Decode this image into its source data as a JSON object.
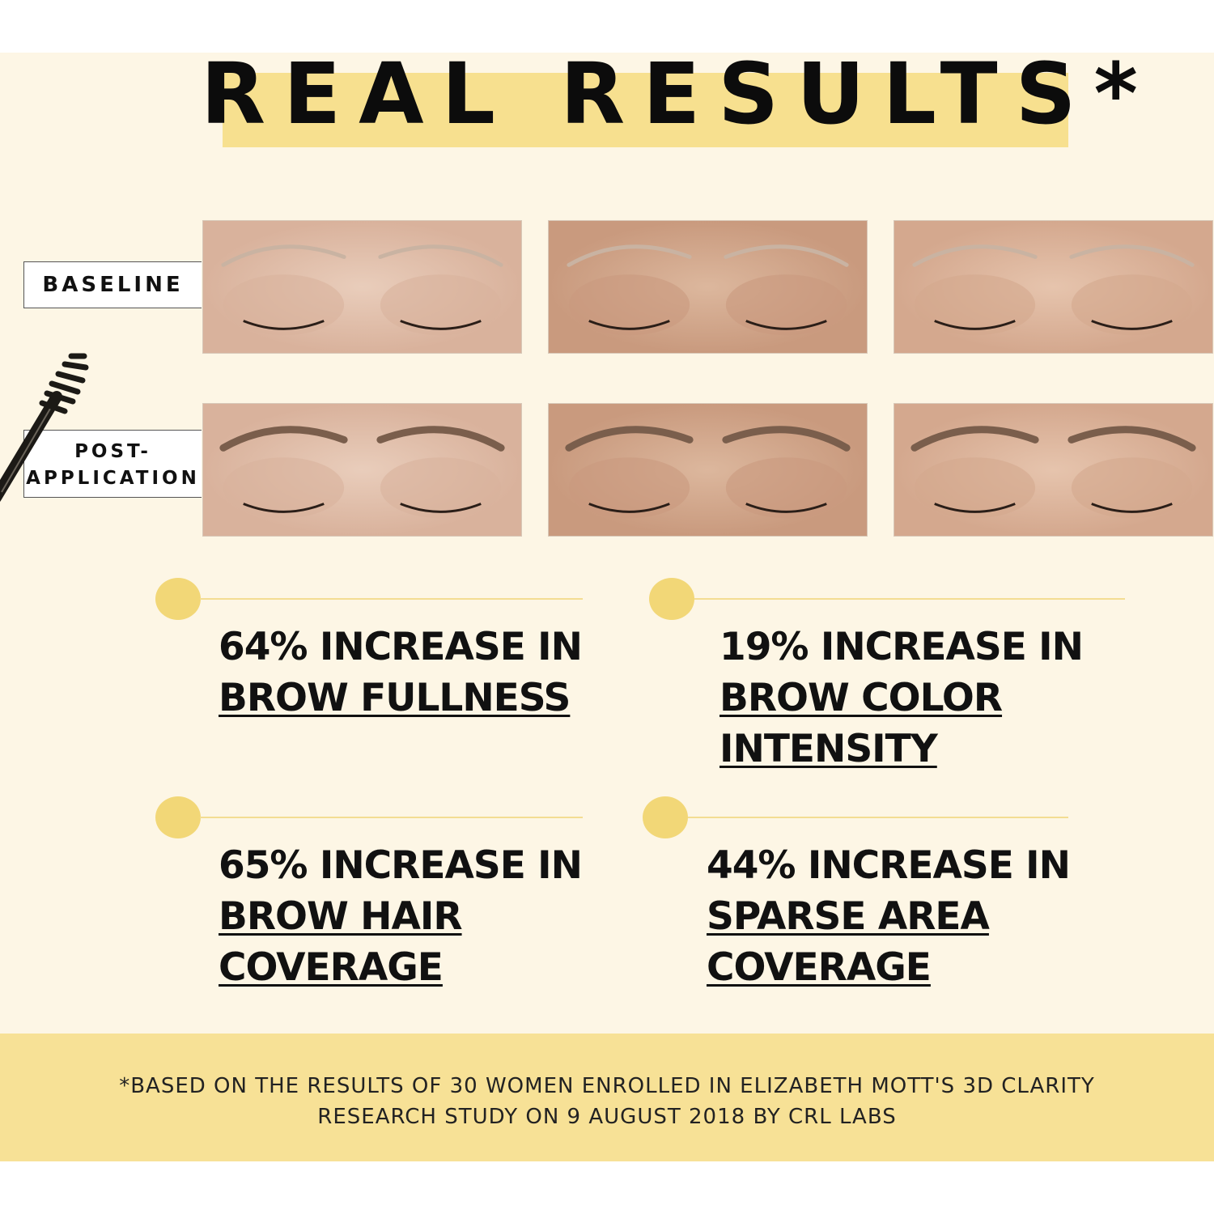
{
  "header": {
    "title": "REAL RESULTS*"
  },
  "labels": {
    "baseline": "BASELINE",
    "post_line1": "POST-",
    "post_line2": "APPLICATION"
  },
  "photos": {
    "rows": [
      "baseline",
      "post-application"
    ],
    "count_per_row": 3
  },
  "stats": [
    {
      "headline": "64% INCREASE IN",
      "detail": [
        "BROW FULLNESS"
      ]
    },
    {
      "headline": "19% INCREASE IN",
      "detail": [
        "BROW COLOR",
        "INTENSITY"
      ]
    },
    {
      "headline": "65% INCREASE IN",
      "detail": [
        "BROW HAIR",
        "COVERAGE"
      ]
    },
    {
      "headline": "44% INCREASE IN",
      "detail": [
        "SPARSE AREA",
        "COVERAGE"
      ]
    }
  ],
  "footer": {
    "line1": "*BASED ON THE RESULTS OF 30 WOMEN ENROLLED IN ELIZABETH MOTT'S 3D CLARITY",
    "line2": "RESEARCH STUDY ON 9 AUGUST 2018 BY CRL LABS"
  },
  "colors": {
    "background": "#fdf6e5",
    "accent_yellow": "#f7e08f",
    "dot": "#f2d777",
    "text": "#111111"
  }
}
